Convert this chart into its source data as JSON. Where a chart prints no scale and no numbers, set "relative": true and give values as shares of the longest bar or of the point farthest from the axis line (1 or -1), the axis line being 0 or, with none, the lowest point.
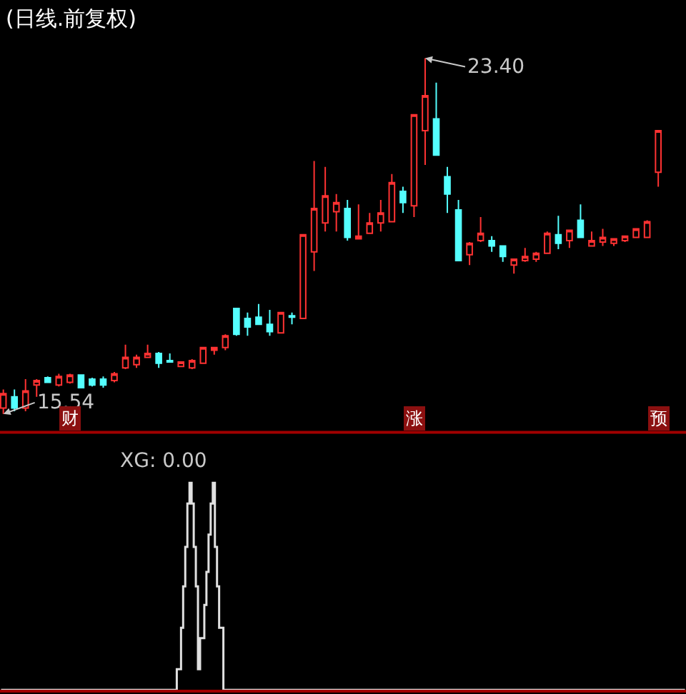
{
  "chart_data": [
    {
      "type": "candlestick",
      "title": "(日线.前复权)",
      "categories": [
        null,
        null,
        null,
        null,
        null,
        null,
        null,
        null,
        null,
        null,
        null,
        null,
        null,
        null,
        null,
        null,
        null,
        null,
        null,
        null,
        null,
        null,
        null,
        null,
        null,
        null,
        null,
        null,
        null,
        null,
        null,
        null,
        null,
        null,
        null,
        null,
        null,
        null,
        null,
        null,
        null,
        null,
        null,
        null,
        null,
        null,
        null,
        null,
        null,
        null,
        null,
        null,
        null,
        null,
        null,
        null,
        null,
        null,
        null,
        null
      ],
      "ohlc": [
        [
          15.67,
          16.08,
          15.54,
          15.99
        ],
        [
          15.92,
          16.08,
          15.6,
          15.67
        ],
        [
          15.67,
          16.31,
          15.6,
          16.05
        ],
        [
          16.18,
          16.31,
          15.92,
          16.28
        ],
        [
          16.34,
          16.37,
          16.24,
          16.24
        ],
        [
          16.18,
          16.43,
          16.15,
          16.37
        ],
        [
          16.24,
          16.43,
          16.21,
          16.4
        ],
        [
          16.4,
          16.4,
          16.12,
          16.12
        ],
        [
          16.31,
          16.34,
          16.15,
          16.18
        ],
        [
          16.31,
          16.37,
          16.12,
          16.18
        ],
        [
          16.28,
          16.47,
          16.24,
          16.43
        ],
        [
          16.56,
          17.07,
          16.53,
          16.79
        ],
        [
          16.63,
          16.85,
          16.56,
          16.79
        ],
        [
          16.79,
          17.07,
          16.79,
          16.88
        ],
        [
          16.88,
          16.91,
          16.56,
          16.66
        ],
        [
          16.72,
          16.88,
          16.69,
          16.69
        ],
        [
          16.59,
          16.69,
          16.59,
          16.69
        ],
        [
          16.56,
          16.75,
          16.53,
          16.72
        ],
        [
          16.66,
          17.01,
          16.66,
          17.01
        ],
        [
          16.95,
          17.01,
          16.85,
          17.01
        ],
        [
          17.01,
          17.3,
          16.95,
          17.27
        ],
        [
          17.87,
          17.87,
          17.27,
          17.3
        ],
        [
          17.65,
          17.78,
          17.27,
          17.46
        ],
        [
          17.68,
          17.97,
          17.52,
          17.52
        ],
        [
          17.52,
          17.84,
          17.27,
          17.36
        ],
        [
          17.33,
          17.78,
          17.33,
          17.78
        ],
        [
          17.71,
          17.78,
          17.52,
          17.68
        ],
        [
          17.65,
          19.5,
          17.65,
          19.5
        ],
        [
          19.12,
          21.13,
          18.7,
          20.08
        ],
        [
          19.76,
          21.0,
          19.57,
          20.36
        ],
        [
          20.01,
          20.4,
          19.57,
          20.21
        ],
        [
          20.08,
          20.27,
          19.37,
          19.44
        ],
        [
          19.41,
          20.17,
          19.41,
          19.47
        ],
        [
          19.53,
          19.98,
          19.53,
          19.76
        ],
        [
          19.76,
          20.27,
          19.57,
          19.98
        ],
        [
          19.79,
          20.84,
          19.79,
          20.65
        ],
        [
          20.46,
          20.56,
          19.98,
          20.21
        ],
        [
          20.14,
          22.15,
          19.89,
          22.15
        ],
        [
          21.8,
          23.4,
          21.04,
          22.57
        ],
        [
          22.06,
          22.86,
          21.26,
          21.26
        ],
        [
          20.78,
          21.0,
          19.98,
          20.4
        ],
        [
          20.05,
          20.27,
          18.93,
          18.93
        ],
        [
          19.06,
          19.34,
          18.83,
          19.31
        ],
        [
          19.37,
          19.89,
          19.34,
          19.53
        ],
        [
          19.37,
          19.47,
          19.12,
          19.25
        ],
        [
          19.25,
          19.25,
          18.9,
          19.02
        ],
        [
          18.83,
          18.96,
          18.64,
          18.96
        ],
        [
          18.93,
          19.21,
          18.9,
          19.02
        ],
        [
          18.96,
          19.12,
          18.9,
          19.09
        ],
        [
          19.09,
          19.57,
          19.09,
          19.53
        ],
        [
          19.5,
          19.92,
          19.18,
          19.31
        ],
        [
          19.37,
          19.6,
          19.21,
          19.6
        ],
        [
          19.82,
          20.17,
          19.44,
          19.44
        ],
        [
          19.25,
          19.57,
          19.25,
          19.37
        ],
        [
          19.34,
          19.63,
          19.25,
          19.44
        ],
        [
          19.31,
          19.41,
          19.25,
          19.41
        ],
        [
          19.37,
          19.47,
          19.34,
          19.47
        ],
        [
          19.44,
          19.63,
          19.44,
          19.63
        ],
        [
          19.44,
          19.82,
          19.44,
          19.79
        ],
        [
          20.88,
          21.8,
          20.56,
          21.8
        ]
      ],
      "colors": [
        "#ff3232",
        "#54ffff",
        "#ff3232",
        "#ff3232",
        "#54ffff",
        "#ff3232",
        "#ff3232",
        "#54ffff",
        "#54ffff",
        "#54ffff",
        "#ff3232",
        "#ff3232",
        "#ff3232",
        "#ff3232",
        "#54ffff",
        "#54ffff",
        "#ff3232",
        "#ff3232",
        "#ff3232",
        "#ff3232",
        "#ff3232",
        "#54ffff",
        "#54ffff",
        "#54ffff",
        "#54ffff",
        "#ff3232",
        "#54ffff",
        "#ff3232",
        "#ff3232",
        "#ff3232",
        "#ff3232",
        "#54ffff",
        "#ff3232",
        "#ff3232",
        "#ff3232",
        "#ff3232",
        "#54ffff",
        "#ff3232",
        "#ff3232",
        "#54ffff",
        "#54ffff",
        "#54ffff",
        "#ff3232",
        "#ff3232",
        "#54ffff",
        "#54ffff",
        "#ff3232",
        "#ff3232",
        "#ff3232",
        "#ff3232",
        "#54ffff",
        "#ff3232",
        "#54ffff",
        "#ff3232",
        "#ff3232",
        "#ff3232",
        "#ff3232",
        "#ff3232",
        "#ff3232",
        "#ff3232"
      ],
      "annotations": [
        "23.40",
        "15.54",
        "财",
        "涨",
        "预"
      ],
      "tick_labels": false
    },
    {
      "type": "step",
      "title": "XG: 0.00",
      "relative": true,
      "categories": [
        null,
        null,
        null,
        null,
        null,
        null,
        null,
        null,
        null,
        null,
        null,
        null,
        null,
        null,
        null,
        null,
        null,
        null,
        null,
        null,
        null,
        null,
        null,
        null,
        null,
        null,
        null,
        null,
        null,
        null,
        null,
        null,
        null,
        null,
        null,
        null,
        null,
        null,
        null,
        null,
        null,
        null,
        null,
        null,
        null,
        null,
        null,
        null,
        null,
        null,
        null,
        null,
        null,
        null,
        null,
        null,
        null,
        null,
        null,
        null,
        null,
        null,
        null,
        null,
        null,
        null,
        null,
        null,
        null,
        null,
        null,
        null,
        null,
        null,
        null,
        null,
        null,
        null,
        null,
        null,
        null,
        null,
        null,
        null,
        null,
        null,
        null,
        null,
        null,
        null,
        null,
        null,
        null,
        null,
        null,
        null,
        null,
        null,
        null,
        null,
        null,
        null,
        null,
        null,
        null,
        null,
        null,
        null,
        null,
        null,
        null,
        null,
        null,
        null,
        null,
        null,
        null,
        null,
        null,
        null,
        null,
        null,
        null,
        null,
        null,
        null,
        null,
        null,
        null,
        null,
        null,
        null,
        null,
        null,
        null,
        null,
        null,
        null,
        null,
        null,
        null,
        null,
        null,
        null,
        null,
        null,
        null,
        null,
        null,
        null,
        null,
        null,
        null,
        null,
        null,
        null,
        null,
        null,
        null,
        null,
        null,
        null,
        null,
        null,
        null,
        null,
        null,
        null,
        null,
        null,
        null,
        null,
        null,
        null,
        null,
        null,
        null,
        null,
        null,
        null,
        null,
        null,
        null,
        null,
        null,
        null,
        null,
        null,
        null,
        null,
        null,
        null,
        null,
        null,
        null,
        null,
        null,
        null,
        null,
        null,
        null,
        null,
        null,
        null,
        null,
        null,
        null,
        null,
        null,
        null,
        null,
        null,
        null,
        null,
        null,
        null,
        null,
        null,
        null,
        null,
        null,
        null,
        null,
        null,
        null,
        null,
        null,
        null,
        null,
        null,
        null,
        null,
        null,
        null,
        null,
        null,
        null,
        null,
        null,
        null,
        null,
        null,
        null,
        null,
        null,
        null,
        null,
        null,
        null,
        null,
        null,
        null,
        null,
        null,
        null,
        null,
        null,
        null,
        null,
        null,
        null,
        null,
        null,
        null,
        null,
        null,
        null,
        null,
        null,
        null,
        null,
        null,
        null,
        null,
        null,
        null,
        null,
        null,
        null,
        null,
        null,
        null,
        null,
        null,
        null,
        null,
        null,
        null,
        null,
        null,
        null,
        null,
        null,
        null,
        null,
        null,
        null,
        null,
        null,
        null,
        null,
        null,
        null,
        null,
        null,
        null,
        null,
        null,
        null,
        null,
        null,
        null,
        null,
        null,
        null,
        null,
        null,
        null,
        null,
        null,
        null,
        null,
        null,
        null
      ],
      "series": [
        {
          "color": "#e0e0e0",
          "values": [
            0,
            0,
            0,
            0,
            0,
            0,
            0,
            0,
            0,
            0,
            0,
            0,
            0,
            0,
            0,
            0,
            0,
            0,
            0,
            0,
            0,
            0,
            0,
            0,
            0,
            0,
            0,
            0,
            0,
            0,
            0,
            0,
            0,
            0,
            0,
            0,
            0,
            0,
            0,
            0,
            0,
            0,
            0,
            0,
            0,
            0,
            0,
            0,
            0,
            0,
            0,
            0,
            0,
            0,
            0,
            0,
            0,
            0,
            0,
            0,
            0,
            0,
            0,
            0,
            0,
            0,
            0,
            0,
            0,
            0,
            0,
            0,
            0,
            0,
            0,
            0,
            0,
            0,
            0,
            0,
            0,
            0,
            0,
            0.1,
            0.1,
            0.3,
            0.5,
            0.69,
            0.9,
            1,
            0.9,
            0.69,
            0.5,
            0.1,
            0.25,
            0.25,
            0.41,
            0.57,
            0.75,
            0.9,
            1,
            0.69,
            0.5,
            0.3,
            0.3,
            0,
            0,
            0,
            0,
            0,
            0,
            0,
            0,
            0,
            0,
            0,
            0,
            0,
            0,
            0,
            0,
            0,
            0,
            0,
            0,
            0,
            0,
            0,
            0,
            0,
            0,
            0,
            0,
            0,
            0,
            0,
            0,
            0,
            0,
            0,
            0,
            0,
            0,
            0,
            0,
            0,
            0,
            0,
            0,
            0,
            0,
            0,
            0,
            0,
            0,
            0,
            0,
            0,
            0,
            0,
            0,
            0,
            0,
            0,
            0,
            0,
            0,
            0,
            0,
            0,
            0,
            0,
            0,
            0,
            0,
            0,
            0,
            0,
            0,
            0,
            0,
            0,
            0,
            0,
            0,
            0,
            0,
            0,
            0,
            0,
            0,
            0,
            0,
            0,
            0,
            0,
            0,
            0,
            0,
            0,
            0,
            0,
            0,
            0,
            0,
            0,
            0,
            0,
            0,
            0,
            0,
            0,
            0,
            0,
            0,
            0,
            0,
            0,
            0,
            0,
            0,
            0,
            0,
            0,
            0,
            0,
            0,
            0,
            0,
            0,
            0,
            0,
            0,
            0,
            0,
            0,
            0,
            0,
            0,
            0,
            0,
            0,
            0,
            0,
            0,
            0,
            0,
            0,
            0,
            0,
            0,
            0,
            0,
            0,
            0,
            0,
            0,
            0,
            0,
            0,
            0,
            0,
            0,
            0,
            0,
            0,
            0,
            0,
            0,
            0,
            0,
            0,
            0,
            0,
            0,
            0,
            0,
            0,
            0,
            0,
            0,
            0,
            0,
            0,
            0,
            0,
            0,
            0,
            0,
            0,
            0,
            0,
            0,
            0,
            0,
            0,
            0,
            0,
            0,
            0,
            0,
            0,
            0,
            0,
            0,
            0,
            0,
            0,
            0,
            0,
            0,
            0,
            0,
            0,
            0,
            0,
            0,
            0,
            0,
            0,
            0,
            0,
            0,
            0
          ]
        }
      ],
      "tick_labels": false
    }
  ]
}
